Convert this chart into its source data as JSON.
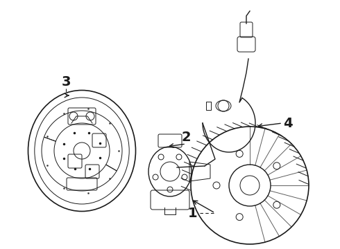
{
  "bg_color": "#ffffff",
  "line_color": "#1a1a1a",
  "figsize": [
    4.9,
    3.6
  ],
  "dpi": 100,
  "labels": [
    "1",
    "2",
    "3",
    "4"
  ],
  "label_fontsize": 14
}
